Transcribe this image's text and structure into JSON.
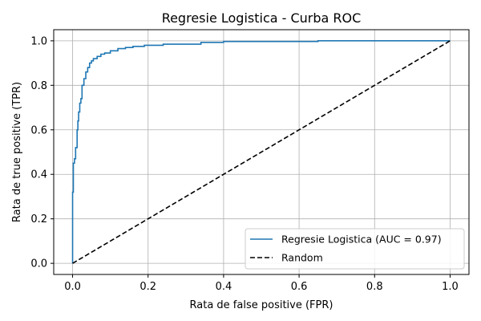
{
  "chart_data": {
    "type": "line",
    "title": "Regresie Logistica - Curba ROC",
    "xlabel": "Rata de false positive (FPR)",
    "ylabel": "Rata de true positive (TPR)",
    "xlim": [
      -0.05,
      1.05
    ],
    "ylim": [
      -0.05,
      1.05
    ],
    "xticks": [
      0.0,
      0.2,
      0.4,
      0.6,
      0.8,
      1.0
    ],
    "yticks": [
      0.0,
      0.2,
      0.4,
      0.6,
      0.8,
      1.0
    ],
    "xtick_labels": [
      "0.0",
      "0.2",
      "0.4",
      "0.6",
      "0.8",
      "1.0"
    ],
    "ytick_labels": [
      "0.0",
      "0.2",
      "0.4",
      "0.6",
      "0.8",
      "1.0"
    ],
    "grid": true,
    "legend_position": "lower-right",
    "series": [
      {
        "name": "Regresie Logistica (AUC = 0.97)",
        "color": "#1f77b4",
        "style": "solid",
        "x": [
          0.0,
          0.0,
          0.002,
          0.002,
          0.005,
          0.005,
          0.008,
          0.008,
          0.012,
          0.012,
          0.014,
          0.014,
          0.016,
          0.016,
          0.019,
          0.019,
          0.022,
          0.022,
          0.025,
          0.025,
          0.03,
          0.03,
          0.035,
          0.035,
          0.04,
          0.04,
          0.045,
          0.045,
          0.05,
          0.05,
          0.055,
          0.055,
          0.065,
          0.065,
          0.075,
          0.075,
          0.085,
          0.085,
          0.1,
          0.1,
          0.12,
          0.12,
          0.14,
          0.14,
          0.16,
          0.16,
          0.19,
          0.19,
          0.24,
          0.24,
          0.34,
          0.34,
          0.4,
          0.4,
          0.65,
          0.65,
          1.0
        ],
        "y": [
          0.0,
          0.32,
          0.32,
          0.45,
          0.45,
          0.47,
          0.47,
          0.52,
          0.52,
          0.6,
          0.6,
          0.64,
          0.64,
          0.68,
          0.68,
          0.72,
          0.72,
          0.74,
          0.74,
          0.8,
          0.8,
          0.83,
          0.83,
          0.86,
          0.86,
          0.88,
          0.88,
          0.9,
          0.9,
          0.91,
          0.91,
          0.92,
          0.92,
          0.93,
          0.93,
          0.94,
          0.94,
          0.945,
          0.945,
          0.955,
          0.955,
          0.965,
          0.965,
          0.97,
          0.97,
          0.975,
          0.975,
          0.98,
          0.98,
          0.985,
          0.985,
          0.993,
          0.993,
          0.997,
          0.997,
          1.0,
          1.0
        ]
      },
      {
        "name": "Random",
        "color": "#000000",
        "style": "dashed",
        "x": [
          0.0,
          1.0
        ],
        "y": [
          0.0,
          1.0
        ]
      }
    ]
  }
}
